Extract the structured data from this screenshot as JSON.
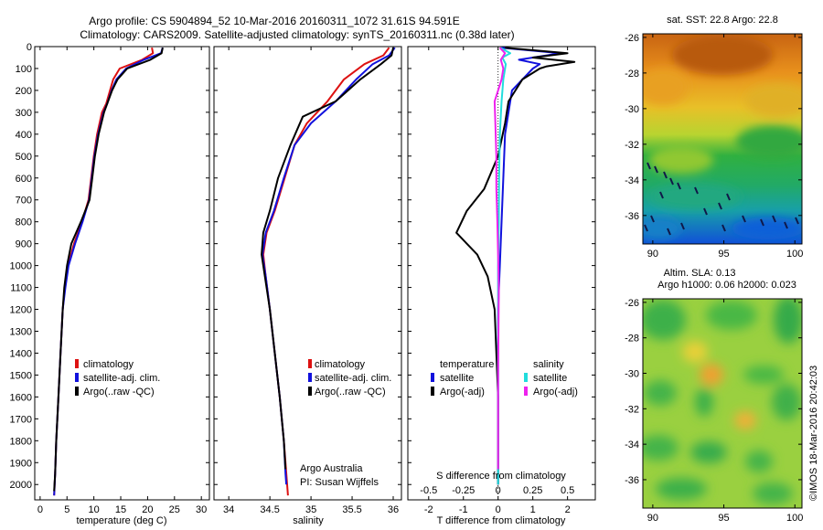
{
  "header": {
    "title_line1": "Argo profile: CS 5904894_52 10-Mar-2016 20160311_1072 31.61S 94.591E",
    "title_line2": "Climatology: CARS2009. Satellite-adjusted climatology: synTS_20160311.nc (0.38d later)"
  },
  "depth_axis": {
    "ticks": [
      0,
      100,
      200,
      300,
      400,
      500,
      600,
      700,
      800,
      900,
      1000,
      1100,
      1200,
      1300,
      1400,
      1500,
      1600,
      1700,
      1800,
      1900,
      2000
    ],
    "range": [
      0,
      2070
    ],
    "inverted": true
  },
  "colors": {
    "climatology": "#dd1111",
    "satellite": "#1111dd",
    "argo": "#000000",
    "sal_satellite": "#22dddd",
    "sal_argo": "#ee22ee"
  },
  "chart_data": [
    {
      "type": "line",
      "name": "temperature-profile",
      "xlabel": "temperature (deg C)",
      "xlim": [
        -1,
        31.5
      ],
      "xticks": [
        0,
        5,
        10,
        15,
        20,
        25,
        30
      ],
      "legend": [
        "climatology",
        "satellite-adj. clim.",
        "Argo(..raw -QC)"
      ],
      "legend_placement": "lower-center",
      "series": [
        {
          "name": "climatology",
          "color": "#dd1111",
          "points": [
            [
              20.8,
              5
            ],
            [
              21.0,
              30
            ],
            [
              19.0,
              60
            ],
            [
              14.8,
              100
            ],
            [
              13.6,
              150
            ],
            [
              13.0,
              200
            ],
            [
              12.3,
              260
            ],
            [
              11.5,
              300
            ],
            [
              10.6,
              400
            ],
            [
              10.0,
              500
            ],
            [
              9.5,
              600
            ],
            [
              9.0,
              700
            ],
            [
              7.8,
              800
            ],
            [
              6.3,
              900
            ],
            [
              5.2,
              1000
            ],
            [
              4.6,
              1100
            ],
            [
              4.2,
              1200
            ],
            [
              3.8,
              1400
            ],
            [
              3.4,
              1600
            ],
            [
              3.0,
              1800
            ],
            [
              2.8,
              1950
            ],
            [
              2.6,
              2050
            ]
          ]
        },
        {
          "name": "satellite-adj. clim.",
          "color": "#1111dd",
          "points": [
            [
              22.8,
              5
            ],
            [
              22.5,
              30
            ],
            [
              19.3,
              60
            ],
            [
              16.0,
              100
            ],
            [
              14.2,
              150
            ],
            [
              13.3,
              200
            ],
            [
              12.5,
              260
            ],
            [
              11.8,
              300
            ],
            [
              10.8,
              400
            ],
            [
              10.1,
              500
            ],
            [
              9.6,
              600
            ],
            [
              9.1,
              700
            ],
            [
              7.9,
              800
            ],
            [
              6.5,
              900
            ],
            [
              5.3,
              1000
            ],
            [
              4.7,
              1100
            ],
            [
              4.2,
              1200
            ],
            [
              3.8,
              1400
            ],
            [
              3.4,
              1600
            ],
            [
              3.0,
              1800
            ],
            [
              2.8,
              1950
            ],
            [
              2.6,
              2050
            ]
          ]
        },
        {
          "name": "Argo(..raw -QC)",
          "color": "#000000",
          "points": [
            [
              22.8,
              5
            ],
            [
              22.6,
              30
            ],
            [
              20.5,
              60
            ],
            [
              16.2,
              100
            ],
            [
              14.4,
              150
            ],
            [
              13.4,
              200
            ],
            [
              12.5,
              260
            ],
            [
              11.9,
              300
            ],
            [
              10.9,
              400
            ],
            [
              10.2,
              500
            ],
            [
              9.7,
              600
            ],
            [
              9.2,
              700
            ],
            [
              7.6,
              800
            ],
            [
              5.8,
              900
            ],
            [
              5.0,
              1000
            ],
            [
              4.5,
              1100
            ],
            [
              4.2,
              1200
            ],
            [
              3.8,
              1400
            ],
            [
              3.4,
              1600
            ],
            [
              3.0,
              1800
            ],
            [
              2.8,
              1950
            ],
            [
              2.6,
              2030
            ]
          ]
        }
      ]
    },
    {
      "type": "line",
      "name": "salinity-profile",
      "xlabel": "salinity",
      "xlim": [
        33.82,
        36.1
      ],
      "xticks": [
        34,
        34.5,
        35,
        35.5,
        36
      ],
      "xtick_labels": [
        "34",
        "34.5",
        "35",
        "35.5",
        "36"
      ],
      "legend": [
        "climatology",
        "satellite-adj. clim.",
        "Argo(..raw -QC)"
      ],
      "legend_placement": "lower-center",
      "annotation": [
        "Argo Australia",
        "PI: Susan Wijffels"
      ],
      "series": [
        {
          "name": "climatology",
          "color": "#dd1111",
          "points": [
            [
              35.95,
              5
            ],
            [
              35.88,
              40
            ],
            [
              35.65,
              80
            ],
            [
              35.4,
              150
            ],
            [
              35.2,
              250
            ],
            [
              34.95,
              350
            ],
            [
              34.8,
              450
            ],
            [
              34.68,
              600
            ],
            [
              34.56,
              750
            ],
            [
              34.46,
              850
            ],
            [
              34.42,
              950
            ],
            [
              34.45,
              1050
            ],
            [
              34.5,
              1200
            ],
            [
              34.56,
              1400
            ],
            [
              34.62,
              1600
            ],
            [
              34.67,
              1800
            ],
            [
              34.7,
              1950
            ],
            [
              34.72,
              2050
            ]
          ]
        },
        {
          "name": "satellite-adj. clim.",
          "color": "#1111dd",
          "points": [
            [
              36.02,
              5
            ],
            [
              35.95,
              40
            ],
            [
              35.75,
              80
            ],
            [
              35.55,
              150
            ],
            [
              35.3,
              250
            ],
            [
              35.0,
              350
            ],
            [
              34.8,
              450
            ],
            [
              34.67,
              600
            ],
            [
              34.55,
              750
            ],
            [
              34.45,
              850
            ],
            [
              34.41,
              950
            ],
            [
              34.45,
              1050
            ],
            [
              34.5,
              1200
            ],
            [
              34.56,
              1400
            ],
            [
              34.62,
              1600
            ],
            [
              34.67,
              1800
            ],
            [
              34.69,
              1950
            ],
            [
              34.7,
              2000
            ]
          ]
        },
        {
          "name": "Argo(..raw -QC)",
          "color": "#000000",
          "points": [
            [
              36.0,
              5
            ],
            [
              35.98,
              40
            ],
            [
              35.85,
              80
            ],
            [
              35.6,
              150
            ],
            [
              35.3,
              250
            ],
            [
              34.9,
              320
            ],
            [
              34.75,
              450
            ],
            [
              34.6,
              600
            ],
            [
              34.5,
              750
            ],
            [
              34.42,
              850
            ],
            [
              34.4,
              950
            ],
            [
              34.44,
              1050
            ],
            [
              34.5,
              1200
            ],
            [
              34.56,
              1400
            ],
            [
              34.62,
              1600
            ],
            [
              34.67,
              1800
            ],
            [
              34.69,
              1930
            ]
          ]
        }
      ]
    },
    {
      "type": "line",
      "name": "difference-profile",
      "xlabel": "T difference from climatology",
      "xlim": [
        -2.6,
        2.8
      ],
      "xticks": [
        -2,
        -1,
        0,
        1,
        2
      ],
      "top_axis_label": "S difference from climatology",
      "top_axis_ticks": [
        -0.5,
        -0.25,
        0,
        0.25,
        0.5
      ],
      "legend": {
        "temperature": {
          "heading": "temperature",
          "entries": [
            "satellite",
            "Argo(-adj)"
          ]
        },
        "salinity": {
          "heading": "salinity",
          "entries": [
            "satellite",
            "Argo(-adj)"
          ]
        }
      },
      "series": [
        {
          "name": "temperature satellite",
          "color": "#1111dd",
          "points": [
            [
              0.1,
              5
            ],
            [
              1.8,
              30
            ],
            [
              0.6,
              60
            ],
            [
              1.2,
              80
            ],
            [
              1.0,
              100
            ],
            [
              0.4,
              200
            ],
            [
              0.3,
              300
            ],
            [
              0.2,
              400
            ],
            [
              0.15,
              600
            ],
            [
              0.1,
              800
            ],
            [
              0.05,
              1000
            ],
            [
              0.0,
              1200
            ],
            [
              0.0,
              1400
            ],
            [
              0.0,
              1600
            ],
            [
              0.0,
              1800
            ],
            [
              0.0,
              2000
            ]
          ]
        },
        {
          "name": "temperature Argo(-adj)",
          "color": "#000000",
          "points": [
            [
              0.2,
              5
            ],
            [
              2.0,
              30
            ],
            [
              1.0,
              50
            ],
            [
              2.2,
              70
            ],
            [
              1.4,
              90
            ],
            [
              1.2,
              100
            ],
            [
              0.7,
              150
            ],
            [
              0.3,
              250
            ],
            [
              0.2,
              350
            ],
            [
              0.0,
              500
            ],
            [
              -0.4,
              650
            ],
            [
              -0.9,
              750
            ],
            [
              -1.2,
              850
            ],
            [
              -0.6,
              950
            ],
            [
              -0.3,
              1050
            ],
            [
              -0.1,
              1200
            ],
            [
              -0.05,
              1400
            ],
            [
              0.0,
              1600
            ],
            [
              0.0,
              1800
            ],
            [
              0.0,
              2000
            ]
          ]
        },
        {
          "name": "salinity satellite",
          "color": "#22dddd",
          "points": [
            [
              0.07,
              5
            ],
            [
              0.35,
              30
            ],
            [
              0.12,
              50
            ],
            [
              0.22,
              80
            ],
            [
              0.15,
              150
            ],
            [
              0.1,
              250
            ],
            [
              0.05,
              400
            ],
            [
              0.03,
              600
            ],
            [
              0.02,
              800
            ],
            [
              0.0,
              1000
            ],
            [
              0.0,
              1400
            ],
            [
              0.0,
              1800
            ],
            [
              0.0,
              2000
            ]
          ]
        },
        {
          "name": "salinity Argo(-adj)",
          "color": "#ee22ee",
          "points": [
            [
              0.05,
              5
            ],
            [
              0.2,
              30
            ],
            [
              0.08,
              60
            ],
            [
              0.15,
              100
            ],
            [
              0.1,
              150
            ],
            [
              -0.1,
              250
            ],
            [
              -0.08,
              350
            ],
            [
              -0.05,
              500
            ],
            [
              -0.05,
              650
            ],
            [
              -0.02,
              800
            ],
            [
              0.0,
              950
            ],
            [
              0.02,
              1100
            ],
            [
              0.01,
              1300
            ],
            [
              0.0,
              1500
            ],
            [
              0.0,
              1700
            ],
            [
              0.0,
              1930
            ]
          ]
        }
      ]
    },
    {
      "type": "heatmap",
      "name": "sst-map",
      "title": "sat. SST: 22.8  Argo: 22.8",
      "xlim": [
        89.3,
        100.5
      ],
      "ylim": [
        -37.6,
        -25.8
      ],
      "xticks": [
        90,
        95,
        100
      ],
      "yticks": [
        -26,
        -28,
        -30,
        -32,
        -34,
        -36
      ]
    },
    {
      "type": "heatmap",
      "name": "sla-map",
      "title_line1": "Altim. SLA: 0.13",
      "title_line2": "Argo h1000: 0.06 h2000: 0.023",
      "xlim": [
        89.3,
        100.5
      ],
      "ylim": [
        -37.6,
        -25.8
      ],
      "xticks": [
        90,
        95,
        100
      ],
      "yticks": [
        -26,
        -28,
        -30,
        -32,
        -34,
        -36
      ]
    }
  ],
  "credit": "©IMOS 18-Mar-2016 20:42:03"
}
